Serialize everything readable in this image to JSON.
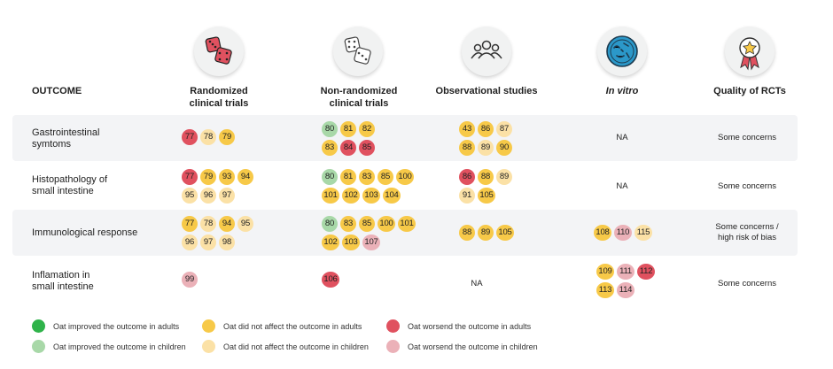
{
  "colors": {
    "improved_adults": "#2fb34a",
    "improved_children": "#a8d8a8",
    "no_effect_adults": "#f7c948",
    "no_effect_children": "#fbe1a6",
    "worsened_adults": "#e0515f",
    "worsened_children": "#ebb1b8"
  },
  "header": {
    "outcome": "OUTCOME",
    "rct_line1": "Randomized",
    "rct_line2": "clinical trials",
    "nonrct_line1": "Non-randomized",
    "nonrct_line2": "clinical trials",
    "observational": "Observational studies",
    "invitro": "In vitro",
    "quality": "Quality of RCTs",
    "icons": [
      "dice-red-icon",
      "dice-gray-icon",
      "people-group-icon",
      "petri-dish-icon",
      "award-ribbon-icon"
    ]
  },
  "rows": [
    {
      "outcome_line1": "Gastrointestinal",
      "outcome_line2": "symtoms",
      "rct": [
        {
          "n": "77",
          "c": "worsened_adults"
        },
        {
          "n": "78",
          "c": "no_effect_children"
        },
        {
          "n": "79",
          "c": "no_effect_adults"
        }
      ],
      "nonrct": [
        {
          "n": "80",
          "c": "improved_children"
        },
        {
          "n": "81",
          "c": "no_effect_adults"
        },
        {
          "n": "82",
          "c": "no_effect_adults"
        },
        {
          "n": "83",
          "c": "no_effect_adults"
        },
        {
          "n": "84",
          "c": "worsened_adults"
        },
        {
          "n": "85",
          "c": "worsened_adults"
        }
      ],
      "obs": [
        {
          "n": "43",
          "c": "no_effect_adults"
        },
        {
          "n": "86",
          "c": "no_effect_adults"
        },
        {
          "n": "87",
          "c": "no_effect_children"
        },
        {
          "n": "88",
          "c": "no_effect_adults"
        },
        {
          "n": "89",
          "c": "no_effect_children"
        },
        {
          "n": "90",
          "c": "no_effect_adults"
        }
      ],
      "invitro_na": "NA",
      "quality_line1": "Some concerns",
      "quality_line2": ""
    },
    {
      "outcome_line1": "Histopathology of",
      "outcome_line2": "small intestine",
      "rct": [
        {
          "n": "77",
          "c": "worsened_adults"
        },
        {
          "n": "79",
          "c": "no_effect_adults"
        },
        {
          "n": "93",
          "c": "no_effect_adults"
        },
        {
          "n": "94",
          "c": "no_effect_adults"
        },
        {
          "n": "95",
          "c": "no_effect_children"
        },
        {
          "n": "96",
          "c": "no_effect_children"
        },
        {
          "n": "97",
          "c": "no_effect_children"
        }
      ],
      "nonrct": [
        {
          "n": "80",
          "c": "improved_children"
        },
        {
          "n": "81",
          "c": "no_effect_adults"
        },
        {
          "n": "83",
          "c": "no_effect_adults"
        },
        {
          "n": "85",
          "c": "no_effect_adults"
        },
        {
          "n": "100",
          "c": "no_effect_adults"
        },
        {
          "n": "101",
          "c": "no_effect_adults"
        },
        {
          "n": "102",
          "c": "no_effect_adults"
        },
        {
          "n": "103",
          "c": "no_effect_adults"
        },
        {
          "n": "104",
          "c": "no_effect_adults"
        }
      ],
      "obs": [
        {
          "n": "86",
          "c": "worsened_adults"
        },
        {
          "n": "88",
          "c": "no_effect_adults"
        },
        {
          "n": "89",
          "c": "no_effect_children"
        },
        {
          "n": "91",
          "c": "no_effect_children"
        },
        {
          "n": "105",
          "c": "no_effect_adults"
        }
      ],
      "invitro_na": "NA",
      "quality_line1": "Some concerns",
      "quality_line2": ""
    },
    {
      "outcome_line1": "Immunological response",
      "outcome_line2": "",
      "rct": [
        {
          "n": "77",
          "c": "no_effect_adults"
        },
        {
          "n": "78",
          "c": "no_effect_children"
        },
        {
          "n": "94",
          "c": "no_effect_adults"
        },
        {
          "n": "95",
          "c": "no_effect_children"
        },
        {
          "n": "96",
          "c": "no_effect_children"
        },
        {
          "n": "97",
          "c": "no_effect_children"
        },
        {
          "n": "98",
          "c": "no_effect_children"
        }
      ],
      "nonrct": [
        {
          "n": "80",
          "c": "improved_children"
        },
        {
          "n": "83",
          "c": "no_effect_adults"
        },
        {
          "n": "85",
          "c": "no_effect_adults"
        },
        {
          "n": "100",
          "c": "no_effect_adults"
        },
        {
          "n": "101",
          "c": "no_effect_adults"
        },
        {
          "n": "102",
          "c": "no_effect_adults"
        },
        {
          "n": "103",
          "c": "no_effect_adults"
        },
        {
          "n": "107",
          "c": "worsened_children"
        }
      ],
      "obs": [
        {
          "n": "88",
          "c": "no_effect_adults"
        },
        {
          "n": "89",
          "c": "no_effect_adults"
        },
        {
          "n": "105",
          "c": "no_effect_adults"
        }
      ],
      "invitro": [
        {
          "n": "108",
          "c": "no_effect_adults"
        },
        {
          "n": "110",
          "c": "worsened_children"
        },
        {
          "n": "115",
          "c": "no_effect_children"
        }
      ],
      "quality_line1": "Some concerns /",
      "quality_line2": "high risk of bias"
    },
    {
      "outcome_line1": "Inflamation in",
      "outcome_line2": "small intestine",
      "rct": [
        {
          "n": "99",
          "c": "worsened_children"
        }
      ],
      "nonrct": [
        {
          "n": "106",
          "c": "worsened_adults"
        }
      ],
      "obs_na": "NA",
      "invitro": [
        {
          "n": "109",
          "c": "no_effect_adults"
        },
        {
          "n": "111",
          "c": "worsened_children"
        },
        {
          "n": "112",
          "c": "worsened_adults"
        },
        {
          "n": "113",
          "c": "no_effect_adults"
        },
        {
          "n": "114",
          "c": "worsened_children"
        }
      ],
      "quality_line1": "Some concerns",
      "quality_line2": ""
    }
  ],
  "legend": [
    {
      "label": "Oat improved the outcome in adults",
      "c": "improved_adults"
    },
    {
      "label": "Oat did not affect the outcome in adults",
      "c": "no_effect_adults"
    },
    {
      "label": "Oat worsend the outcome in adults",
      "c": "worsened_adults"
    },
    {
      "label": "Oat improved the outcome in children",
      "c": "improved_children"
    },
    {
      "label": "Oat did not affect the outcome in children",
      "c": "no_effect_children"
    },
    {
      "label": "Oat worsend the outcome in children",
      "c": "worsened_children"
    }
  ]
}
